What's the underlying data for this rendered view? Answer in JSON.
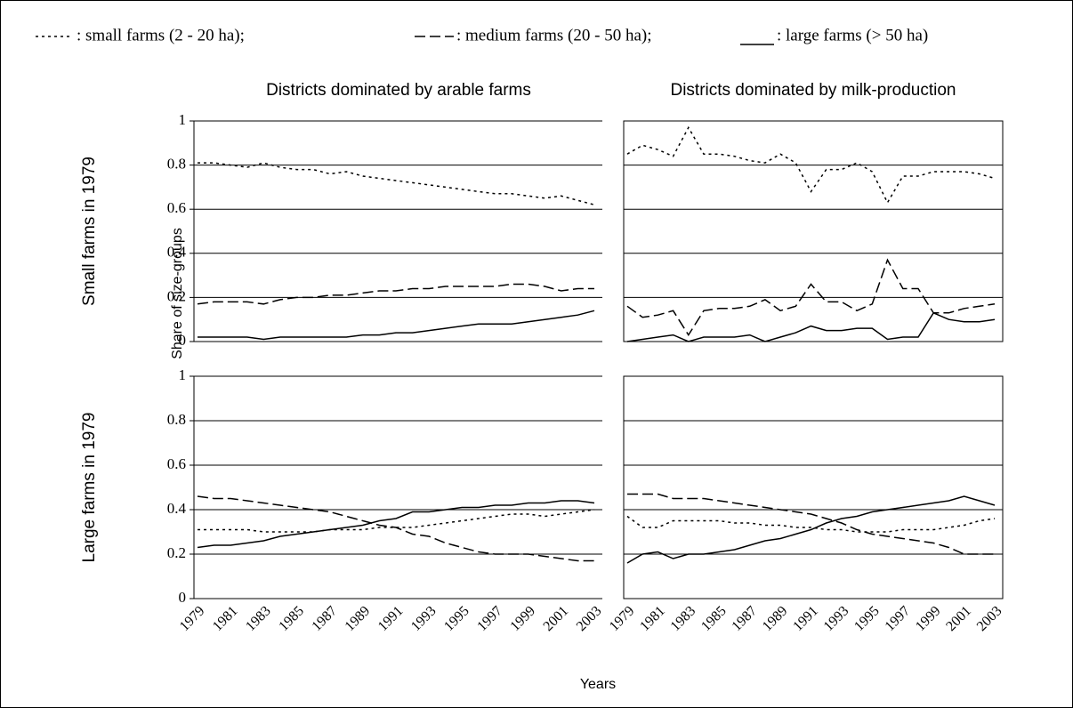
{
  "legend": [
    {
      "label": ": small farms (2 - 20 ha);",
      "style": "dotted"
    },
    {
      "label": ": medium farms (20 - 50 ha);",
      "style": "dashed"
    },
    {
      "label": ": large farms (> 50 ha)",
      "style": "solid"
    }
  ],
  "column_titles": [
    "Districts dominated by arable farms",
    "Districts dominated by milk-production"
  ],
  "row_labels": [
    "Small farms in 1979",
    "Large farms in 1979"
  ],
  "y_label": "Share of size-groups",
  "x_label": "Years",
  "chart_data": [
    {
      "type": "line",
      "color": "#000000",
      "grid": true,
      "frame": false,
      "y_tick_labels": true,
      "categories": [
        "1979",
        null,
        "1981",
        null,
        "1983",
        null,
        "1985",
        null,
        "1987",
        null,
        "1989",
        null,
        "1991",
        null,
        "1993",
        null,
        "1995",
        null,
        "1997",
        null,
        "1999",
        null,
        "2001",
        null,
        "2003"
      ],
      "ylim": [
        0,
        1
      ],
      "yticks": [
        0,
        0.2,
        0.4,
        0.6,
        0.8,
        1
      ],
      "series": [
        {
          "style": "dotted",
          "values": [
            0.81,
            0.81,
            0.8,
            0.79,
            0.81,
            0.79,
            0.78,
            0.78,
            0.76,
            0.77,
            0.75,
            0.74,
            0.73,
            0.72,
            0.71,
            0.7,
            0.69,
            0.68,
            0.67,
            0.67,
            0.66,
            0.65,
            0.66,
            0.64,
            0.62
          ]
        },
        {
          "style": "dashed",
          "values": [
            0.17,
            0.18,
            0.18,
            0.18,
            0.17,
            0.19,
            0.2,
            0.2,
            0.21,
            0.21,
            0.22,
            0.23,
            0.23,
            0.24,
            0.24,
            0.25,
            0.25,
            0.25,
            0.25,
            0.26,
            0.26,
            0.25,
            0.23,
            0.24,
            0.24
          ]
        },
        {
          "style": "solid",
          "values": [
            0.02,
            0.02,
            0.02,
            0.02,
            0.01,
            0.02,
            0.02,
            0.02,
            0.02,
            0.02,
            0.03,
            0.03,
            0.04,
            0.04,
            0.05,
            0.06,
            0.07,
            0.08,
            0.08,
            0.08,
            0.09,
            0.1,
            0.11,
            0.12,
            0.14
          ]
        }
      ]
    },
    {
      "type": "line",
      "color": "#000000",
      "grid": true,
      "frame": true,
      "y_tick_labels": false,
      "categories": [
        "1979",
        null,
        "1981",
        null,
        "1983",
        null,
        "1985",
        null,
        "1987",
        null,
        "1989",
        null,
        "1991",
        null,
        "1993",
        null,
        "1995",
        null,
        "1997",
        null,
        "1999",
        null,
        "2001",
        null,
        "2003"
      ],
      "ylim": [
        0,
        1
      ],
      "yticks": [
        0,
        0.2,
        0.4,
        0.6,
        0.8,
        1
      ],
      "series": [
        {
          "style": "dotted",
          "values": [
            0.85,
            0.89,
            0.87,
            0.84,
            0.97,
            0.85,
            0.85,
            0.84,
            0.82,
            0.81,
            0.85,
            0.81,
            0.68,
            0.78,
            0.78,
            0.81,
            0.77,
            0.63,
            0.75,
            0.75,
            0.77,
            0.77,
            0.77,
            0.76,
            0.74
          ]
        },
        {
          "style": "dashed",
          "values": [
            0.16,
            0.11,
            0.12,
            0.14,
            0.03,
            0.14,
            0.15,
            0.15,
            0.16,
            0.19,
            0.14,
            0.16,
            0.26,
            0.18,
            0.18,
            0.14,
            0.17,
            0.37,
            0.24,
            0.24,
            0.13,
            0.13,
            0.15,
            0.16,
            0.17
          ]
        },
        {
          "style": "solid",
          "values": [
            0.0,
            0.01,
            0.02,
            0.03,
            0.0,
            0.02,
            0.02,
            0.02,
            0.03,
            0.0,
            0.02,
            0.04,
            0.07,
            0.05,
            0.05,
            0.06,
            0.06,
            0.01,
            0.02,
            0.02,
            0.13,
            0.1,
            0.09,
            0.09,
            0.1
          ]
        }
      ]
    },
    {
      "type": "line",
      "color": "#000000",
      "grid": true,
      "frame": false,
      "y_tick_labels": true,
      "categories": [
        "1979",
        null,
        "1981",
        null,
        "1983",
        null,
        "1985",
        null,
        "1987",
        null,
        "1989",
        null,
        "1991",
        null,
        "1993",
        null,
        "1995",
        null,
        "1997",
        null,
        "1999",
        null,
        "2001",
        null,
        "2003"
      ],
      "ylim": [
        0,
        1
      ],
      "yticks": [
        0,
        0.2,
        0.4,
        0.6,
        0.8,
        1
      ],
      "series": [
        {
          "style": "dotted",
          "values": [
            0.31,
            0.31,
            0.31,
            0.31,
            0.3,
            0.3,
            0.3,
            0.3,
            0.31,
            0.31,
            0.31,
            0.32,
            0.32,
            0.32,
            0.33,
            0.34,
            0.35,
            0.36,
            0.37,
            0.38,
            0.38,
            0.37,
            0.38,
            0.39,
            0.4
          ]
        },
        {
          "style": "dashed",
          "values": [
            0.46,
            0.45,
            0.45,
            0.44,
            0.43,
            0.42,
            0.41,
            0.4,
            0.39,
            0.37,
            0.35,
            0.33,
            0.32,
            0.29,
            0.28,
            0.25,
            0.23,
            0.21,
            0.2,
            0.2,
            0.2,
            0.19,
            0.18,
            0.17,
            0.17
          ]
        },
        {
          "style": "solid",
          "values": [
            0.23,
            0.24,
            0.24,
            0.25,
            0.26,
            0.28,
            0.29,
            0.3,
            0.31,
            0.32,
            0.33,
            0.35,
            0.36,
            0.39,
            0.39,
            0.4,
            0.41,
            0.41,
            0.42,
            0.42,
            0.43,
            0.43,
            0.44,
            0.44,
            0.43
          ]
        }
      ]
    },
    {
      "type": "line",
      "color": "#000000",
      "grid": true,
      "frame": true,
      "y_tick_labels": false,
      "categories": [
        "1979",
        null,
        "1981",
        null,
        "1983",
        null,
        "1985",
        null,
        "1987",
        null,
        "1989",
        null,
        "1991",
        null,
        "1993",
        null,
        "1995",
        null,
        "1997",
        null,
        "1999",
        null,
        "2001",
        null,
        "2003"
      ],
      "ylim": [
        0,
        1
      ],
      "yticks": [
        0,
        0.2,
        0.4,
        0.6,
        0.8,
        1
      ],
      "series": [
        {
          "style": "dotted",
          "values": [
            0.37,
            0.32,
            0.32,
            0.35,
            0.35,
            0.35,
            0.35,
            0.34,
            0.34,
            0.33,
            0.33,
            0.32,
            0.32,
            0.31,
            0.31,
            0.3,
            0.3,
            0.3,
            0.31,
            0.31,
            0.31,
            0.32,
            0.33,
            0.35,
            0.36
          ]
        },
        {
          "style": "dashed",
          "values": [
            0.47,
            0.47,
            0.47,
            0.45,
            0.45,
            0.45,
            0.44,
            0.43,
            0.42,
            0.41,
            0.4,
            0.39,
            0.38,
            0.36,
            0.34,
            0.31,
            0.29,
            0.28,
            0.27,
            0.26,
            0.25,
            0.23,
            0.2,
            0.2,
            0.2
          ]
        },
        {
          "style": "solid",
          "values": [
            0.16,
            0.2,
            0.21,
            0.18,
            0.2,
            0.2,
            0.21,
            0.22,
            0.24,
            0.26,
            0.27,
            0.29,
            0.31,
            0.34,
            0.36,
            0.37,
            0.39,
            0.4,
            0.41,
            0.42,
            0.43,
            0.44,
            0.46,
            0.44,
            0.42
          ]
        }
      ]
    }
  ]
}
